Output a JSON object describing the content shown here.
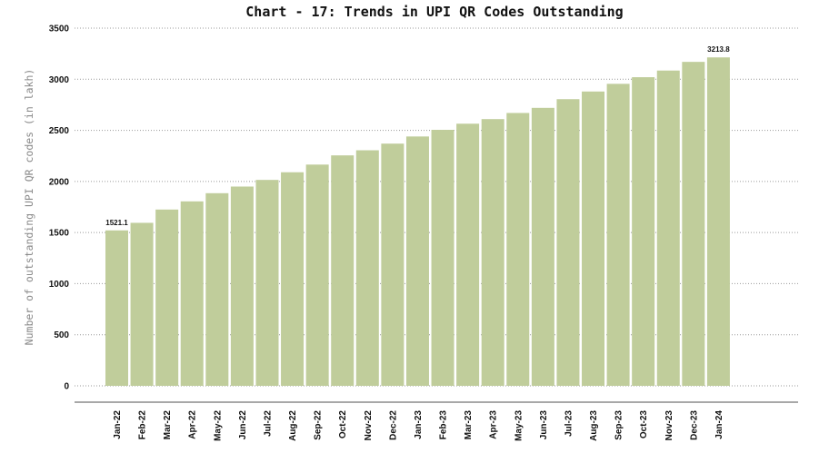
{
  "chart_data": {
    "type": "bar",
    "title": "Chart - 17: Trends in UPI QR Codes Outstanding",
    "xlabel": "",
    "ylabel": "Number of outstanding UPI QR codes (in lakh)",
    "ylim": [
      0,
      3500
    ],
    "yticks": [
      0,
      500,
      1000,
      1500,
      2000,
      2500,
      3000,
      3500
    ],
    "grid": true,
    "bar_color": "#c0cd9b",
    "categories": [
      "Jan-22",
      "Feb-22",
      "Mar-22",
      "Apr-22",
      "May-22",
      "Jun-22",
      "Jul-22",
      "Aug-22",
      "Sep-22",
      "Oct-22",
      "Nov-22",
      "Dec-22",
      "Jan-23",
      "Feb-23",
      "Mar-23",
      "Apr-23",
      "May-23",
      "Jun-23",
      "Jul-23",
      "Aug-23",
      "Sep-23",
      "Oct-23",
      "Nov-23",
      "Dec-23",
      "Jan-24"
    ],
    "values": [
      1521.1,
      1595,
      1725,
      1805,
      1885,
      1950,
      2015,
      2090,
      2165,
      2255,
      2305,
      2370,
      2440,
      2505,
      2565,
      2610,
      2670,
      2720,
      2805,
      2880,
      2955,
      3020,
      3085,
      3170,
      3213.8
    ],
    "data_labels": [
      {
        "index": 0,
        "text": "1521.1"
      },
      {
        "index": 24,
        "text": "3213.8"
      }
    ]
  }
}
